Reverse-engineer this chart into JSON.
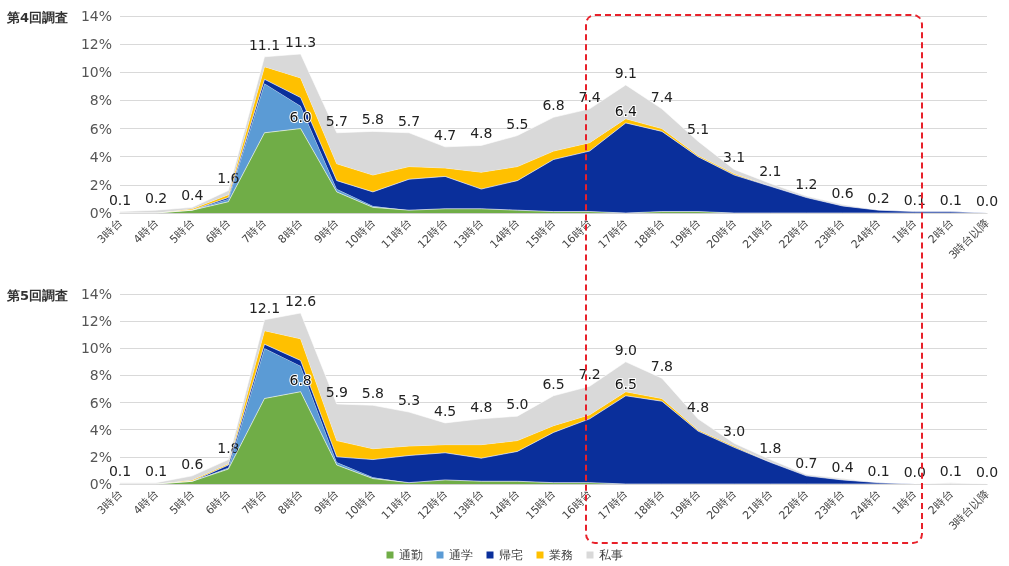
{
  "chart_data": [
    {
      "type": "area",
      "title": "第4回調査",
      "stacked": true,
      "categories": [
        "3時台",
        "4時台",
        "5時台",
        "6時台",
        "7時台",
        "8時台",
        "9時台",
        "10時台",
        "11時台",
        "12時台",
        "13時台",
        "14時台",
        "15時台",
        "16時台",
        "17時台",
        "18時台",
        "19時台",
        "20時台",
        "21時台",
        "22時台",
        "23時台",
        "24時台",
        "1時台",
        "2時台",
        "3時台以降"
      ],
      "ylim": [
        0,
        14
      ],
      "yticks": [
        {
          "value": 0,
          "label": "0%"
        },
        {
          "value": 2,
          "label": "2%"
        },
        {
          "value": 4,
          "label": "4%"
        },
        {
          "value": 6,
          "label": "6%"
        },
        {
          "value": 8,
          "label": "8%"
        },
        {
          "value": 10,
          "label": "10%"
        },
        {
          "value": 12,
          "label": "12%"
        },
        {
          "value": 14,
          "label": "14%"
        }
      ],
      "grid": "y",
      "legend": false,
      "series": [
        {
          "color": "#70ad47",
          "values": [
            0,
            0,
            0.2,
            0.8,
            5.7,
            6.0,
            1.5,
            0.4,
            0.2,
            0.3,
            0.3,
            0.2,
            0.1,
            0.1,
            0,
            0.1,
            0.1,
            0,
            0,
            0,
            0,
            0,
            0,
            0,
            0
          ],
          "value_labels": [
            null,
            null,
            null,
            null,
            null,
            "6.0",
            null,
            null,
            null,
            null,
            null,
            null,
            null,
            null,
            null,
            null,
            null,
            null,
            null,
            null,
            null,
            null,
            null,
            null,
            null
          ]
        },
        {
          "color": "#5b9bd5",
          "values": [
            0,
            0,
            0,
            0.2,
            3.5,
            1.6,
            0.2,
            0.1,
            0,
            0,
            0,
            0,
            0,
            0,
            0,
            0,
            0,
            0,
            0,
            0,
            0,
            0,
            0,
            0,
            0
          ]
        },
        {
          "color": "#0a2f9b",
          "values": [
            0,
            0,
            0,
            0.1,
            0.3,
            0.6,
            0.6,
            1.0,
            2.2,
            2.3,
            1.4,
            2.1,
            3.7,
            4.3,
            6.4,
            5.7,
            3.9,
            2.7,
            1.9,
            1.1,
            0.5,
            0.2,
            0.1,
            0.1,
            0
          ],
          "value_labels": [
            null,
            null,
            null,
            null,
            null,
            null,
            null,
            null,
            null,
            null,
            null,
            null,
            null,
            null,
            "6.4",
            null,
            null,
            null,
            null,
            null,
            null,
            null,
            null,
            null,
            null
          ]
        },
        {
          "color": "#ffc000",
          "values": [
            0,
            0,
            0.1,
            0.2,
            0.9,
            1.4,
            1.2,
            1.2,
            0.9,
            0.6,
            1.2,
            1.0,
            0.6,
            0.6,
            0.3,
            0.2,
            0.1,
            0.1,
            0,
            0,
            0,
            0,
            0,
            0,
            0
          ]
        },
        {
          "color": "#d9d9d9",
          "values": [
            0.1,
            0.2,
            0.1,
            0.3,
            0.7,
            1.7,
            2.2,
            3.1,
            2.4,
            1.5,
            1.9,
            2.2,
            2.4,
            2.4,
            2.4,
            1.4,
            1.0,
            0.3,
            0.2,
            0.1,
            0.1,
            0,
            0,
            0,
            0
          ]
        }
      ],
      "totals": [
        "0.1",
        "0.2",
        "0.4",
        "1.6",
        "11.1",
        "11.3",
        "5.7",
        "5.8",
        "5.7",
        "4.7",
        "4.8",
        "5.5",
        "6.8",
        "7.4",
        "9.1",
        "7.4",
        "5.1",
        "3.1",
        "2.1",
        "1.2",
        "0.6",
        "0.2",
        "0.1",
        "0.1",
        "0.0"
      ]
    },
    {
      "type": "area",
      "title": "第5回調査",
      "stacked": true,
      "categories": [
        "3時台",
        "4時台",
        "5時台",
        "6時台",
        "7時台",
        "8時台",
        "9時台",
        "10時台",
        "11時台",
        "12時台",
        "13時台",
        "14時台",
        "15時台",
        "16時台",
        "17時台",
        "18時台",
        "19時台",
        "20時台",
        "21時台",
        "22時台",
        "23時台",
        "24時台",
        "1時台",
        "2時台",
        "3時台以降"
      ],
      "ylim": [
        0,
        14
      ],
      "yticks": [
        {
          "value": 0,
          "label": "0%"
        },
        {
          "value": 2,
          "label": "2%"
        },
        {
          "value": 4,
          "label": "4%"
        },
        {
          "value": 6,
          "label": "6%"
        },
        {
          "value": 8,
          "label": "8%"
        },
        {
          "value": 10,
          "label": "10%"
        },
        {
          "value": 12,
          "label": "12%"
        },
        {
          "value": 14,
          "label": "14%"
        }
      ],
      "grid": "y",
      "legend": "bottom",
      "series": [
        {
          "name": "通勤",
          "color": "#70ad47",
          "values": [
            0,
            0,
            0.2,
            1.1,
            6.3,
            6.8,
            1.4,
            0.4,
            0.1,
            0.3,
            0.2,
            0.2,
            0.1,
            0.1,
            0,
            0,
            0,
            0,
            0,
            0,
            0,
            0,
            0,
            0,
            0
          ],
          "value_labels": [
            null,
            null,
            null,
            null,
            null,
            "6.8",
            null,
            null,
            null,
            null,
            null,
            null,
            null,
            null,
            null,
            null,
            null,
            null,
            null,
            null,
            null,
            null,
            null,
            null,
            null
          ]
        },
        {
          "name": "通学",
          "color": "#5b9bd5",
          "values": [
            0,
            0,
            0,
            0.1,
            3.7,
            1.9,
            0.2,
            0.1,
            0,
            0,
            0,
            0,
            0,
            0,
            0,
            0,
            0,
            0,
            0,
            0,
            0,
            0,
            0,
            0,
            0
          ]
        },
        {
          "name": "帰宅",
          "color": "#0a2f9b",
          "values": [
            0,
            0,
            0,
            0.2,
            0.3,
            0.4,
            0.4,
            1.3,
            2.0,
            2.0,
            1.7,
            2.2,
            3.7,
            4.7,
            6.5,
            6.1,
            3.9,
            2.7,
            1.6,
            0.6,
            0.3,
            0.1,
            0,
            0,
            0
          ],
          "value_labels": [
            null,
            null,
            null,
            null,
            null,
            null,
            null,
            null,
            null,
            null,
            null,
            null,
            null,
            null,
            "6.5",
            null,
            null,
            null,
            null,
            null,
            null,
            null,
            null,
            null,
            null
          ]
        },
        {
          "name": "業務",
          "color": "#ffc000",
          "values": [
            0,
            0,
            0.1,
            0.1,
            1.0,
            1.6,
            1.2,
            0.8,
            0.7,
            0.6,
            1.0,
            0.8,
            0.5,
            0.3,
            0.3,
            0.2,
            0.1,
            0.1,
            0,
            0,
            0,
            0,
            0,
            0,
            0
          ]
        },
        {
          "name": "私事",
          "color": "#d9d9d9",
          "values": [
            0.1,
            0.1,
            0.3,
            0.3,
            0.8,
            1.9,
            2.7,
            3.2,
            2.5,
            1.6,
            1.9,
            1.8,
            2.2,
            2.1,
            2.2,
            1.5,
            0.8,
            0.2,
            0.2,
            0.1,
            0.1,
            0,
            0,
            0.1,
            0
          ]
        }
      ],
      "totals": [
        "0.1",
        "0.1",
        "0.6",
        "1.8",
        "12.1",
        "12.6",
        "5.9",
        "5.8",
        "5.3",
        "4.5",
        "4.8",
        "5.0",
        "6.5",
        "7.2",
        "9.0",
        "7.8",
        "4.8",
        "3.0",
        "1.8",
        "0.7",
        "0.4",
        "0.1",
        "0.0",
        "0.1",
        "0.0"
      ]
    }
  ]
}
